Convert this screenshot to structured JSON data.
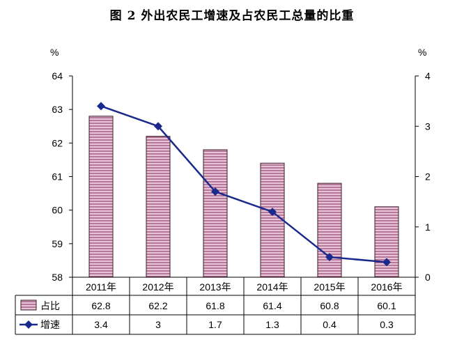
{
  "chart_data": {
    "type": "bar",
    "title": "图 2 外出农民工增速及占农民工总量的比重",
    "categories": [
      "2011年",
      "2012年",
      "2013年",
      "2014年",
      "2015年",
      "2016年"
    ],
    "series": [
      {
        "name": "占比",
        "type": "bar",
        "axis": "left",
        "values": [
          62.8,
          62.2,
          61.8,
          61.4,
          60.8,
          60.1
        ],
        "value_labels": [
          "62.8",
          "62.2",
          "61.8",
          "61.4",
          "60.8",
          "60.1"
        ]
      },
      {
        "name": "增速",
        "type": "line",
        "axis": "right",
        "values": [
          3.4,
          3.0,
          1.7,
          1.3,
          0.4,
          0.3
        ],
        "value_labels": [
          "3.4",
          "3",
          "1.7",
          "1.3",
          "0.4",
          "0.3"
        ]
      }
    ],
    "left_axis": {
      "unit": "%",
      "ylim": [
        58,
        64
      ],
      "ticks": [
        "58",
        "59",
        "60",
        "61",
        "62",
        "63",
        "64"
      ]
    },
    "right_axis": {
      "unit": "%",
      "ylim": [
        0,
        4
      ],
      "ticks": [
        "0",
        "1",
        "2",
        "3",
        "4"
      ]
    },
    "grid": false,
    "legend": "data-table",
    "colors": {
      "bar_fill": "#e8c4d8",
      "bar_stripe": "#8c3a64",
      "bar_stroke": "#3a1a2a",
      "line": "#1a2a8c",
      "axis": "#000000"
    }
  }
}
